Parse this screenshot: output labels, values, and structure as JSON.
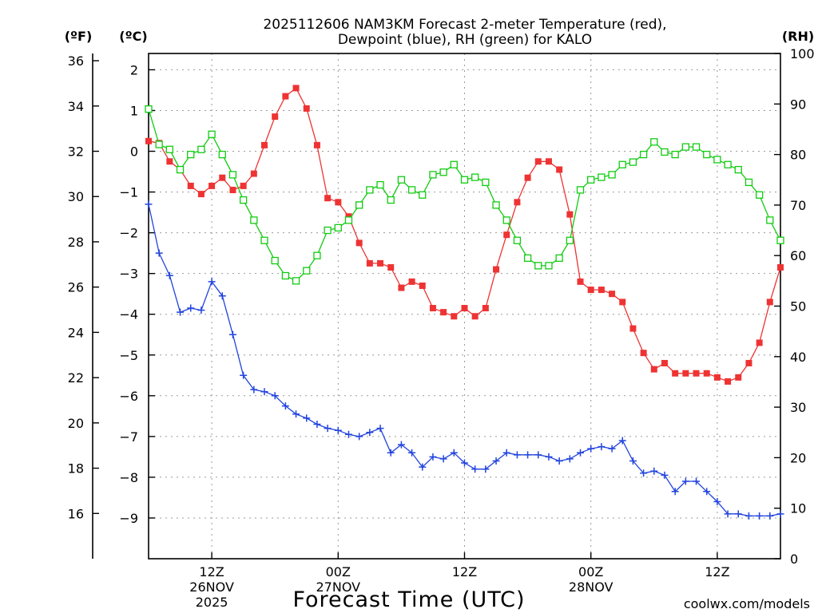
{
  "chart_data": {
    "type": "line",
    "title": [
      "2025112606 NAM3KM Forecast 2-meter Temperature (red),",
      "Dewpoint (blue), RH (green) for KALO"
    ],
    "xlabel": "Forecast Time (UTC)",
    "credit": "coolwx.com/models",
    "colors": {
      "temperature": "#ee3333",
      "dewpoint": "#2244dd",
      "rh": "#11cc11"
    },
    "x_unit": "forecast hour (0 = 2025-11-26 06Z)",
    "xlim": [
      0,
      60
    ],
    "x_ticks": [
      {
        "value": 6,
        "label": [
          "12Z",
          "26NOV",
          "2025"
        ]
      },
      {
        "value": 18,
        "label": [
          "00Z",
          "27NOV"
        ]
      },
      {
        "value": 30,
        "label": [
          "12Z"
        ]
      },
      {
        "value": 42,
        "label": [
          "00Z",
          "28NOV"
        ]
      },
      {
        "value": 54,
        "label": [
          "12Z"
        ]
      }
    ],
    "y_left_f": {
      "label": "(ºF)",
      "ticks": [
        "16",
        "18",
        "20",
        "22",
        "24",
        "26",
        "28",
        "30",
        "32",
        "34",
        "36"
      ]
    },
    "y_left_c": {
      "label": "(ºC)",
      "ylim": [
        -10,
        2.4
      ],
      "ticks": [
        "-9",
        "-8",
        "-7",
        "-6",
        "-5",
        "-4",
        "-3",
        "-2",
        "-1",
        "0",
        "1",
        "2"
      ]
    },
    "y_right": {
      "label": "(RH)",
      "ylim": [
        0,
        100
      ],
      "ticks": [
        "0",
        "10",
        "20",
        "30",
        "40",
        "50",
        "60",
        "70",
        "80",
        "90",
        "100"
      ]
    },
    "series": [
      {
        "name": "Temperature",
        "axis": "c",
        "marker": "filled-square",
        "x": [
          0,
          1,
          2,
          3,
          4,
          5,
          6,
          7,
          8,
          9,
          10,
          11,
          12,
          13,
          14,
          15,
          16,
          17,
          18,
          19,
          20,
          21,
          22,
          23,
          24,
          25,
          26,
          27,
          28,
          29,
          30,
          31,
          32,
          33,
          34,
          35,
          36,
          37,
          38,
          39,
          40,
          41,
          42,
          43,
          44,
          45,
          46,
          47,
          48,
          49,
          50,
          51,
          52,
          53,
          54,
          55,
          56,
          57,
          58,
          59,
          60
        ],
        "values": [
          0.25,
          0.2,
          -0.25,
          -0.45,
          -0.85,
          -1.05,
          -0.85,
          -0.65,
          -0.95,
          -0.85,
          -0.55,
          0.15,
          0.85,
          1.35,
          1.55,
          1.05,
          0.15,
          -1.15,
          -1.25,
          -1.6,
          -2.25,
          -2.75,
          -2.75,
          -2.85,
          -3.35,
          -3.2,
          -3.3,
          -3.85,
          -3.95,
          -4.05,
          -3.85,
          -4.05,
          -3.85,
          -2.9,
          -2.05,
          -1.25,
          -0.65,
          -0.25,
          -0.25,
          -0.45,
          -1.55,
          -3.2,
          -3.4,
          -3.4,
          -3.5,
          -3.7,
          -4.35,
          -4.95,
          -5.35,
          -5.2,
          -5.45,
          -5.45,
          -5.45,
          -5.45,
          -5.55,
          -5.65,
          -5.55,
          -5.2,
          -4.7,
          -3.7,
          -2.85
        ]
      },
      {
        "name": "Dewpoint",
        "axis": "c",
        "marker": "plus",
        "x": [
          0,
          1,
          2,
          3,
          4,
          5,
          6,
          7,
          8,
          9,
          10,
          11,
          12,
          13,
          14,
          15,
          16,
          17,
          18,
          19,
          20,
          21,
          22,
          23,
          24,
          25,
          26,
          27,
          28,
          29,
          30,
          31,
          32,
          33,
          34,
          35,
          36,
          37,
          38,
          39,
          40,
          41,
          42,
          43,
          44,
          45,
          46,
          47,
          48,
          49,
          50,
          51,
          52,
          53,
          54,
          55,
          56,
          57,
          58,
          59,
          60
        ],
        "values": [
          -1.3,
          -2.5,
          -3.05,
          -3.95,
          -3.85,
          -3.9,
          -3.2,
          -3.55,
          -4.5,
          -5.5,
          -5.85,
          -5.9,
          -6.0,
          -6.25,
          -6.45,
          -6.55,
          -6.7,
          -6.8,
          -6.85,
          -6.95,
          -7.0,
          -6.9,
          -6.8,
          -7.4,
          -7.2,
          -7.4,
          -7.75,
          -7.5,
          -7.55,
          -7.4,
          -7.65,
          -7.8,
          -7.8,
          -7.6,
          -7.4,
          -7.45,
          -7.45,
          -7.45,
          -7.5,
          -7.6,
          -7.55,
          -7.4,
          -7.3,
          -7.25,
          -7.3,
          -7.1,
          -7.6,
          -7.9,
          -7.85,
          -7.95,
          -8.35,
          -8.1,
          -8.1,
          -8.35,
          -8.6,
          -8.9,
          -8.9,
          -8.95,
          -8.95,
          -8.95,
          -8.9
        ]
      },
      {
        "name": "RH",
        "axis": "rh",
        "marker": "open-square",
        "x": [
          0,
          1,
          2,
          3,
          4,
          5,
          6,
          7,
          8,
          9,
          10,
          11,
          12,
          13,
          14,
          15,
          16,
          17,
          18,
          19,
          20,
          21,
          22,
          23,
          24,
          25,
          26,
          27,
          28,
          29,
          30,
          31,
          32,
          33,
          34,
          35,
          36,
          37,
          38,
          39,
          40,
          41,
          42,
          43,
          44,
          45,
          46,
          47,
          48,
          49,
          50,
          51,
          52,
          53,
          54,
          55,
          56,
          57,
          58,
          59,
          60
        ],
        "values": [
          89,
          82,
          81,
          77,
          80,
          81,
          84,
          80,
          76,
          71,
          67,
          63,
          59,
          56,
          55,
          57,
          60,
          65,
          65.5,
          67,
          70,
          73,
          74,
          71,
          75,
          73,
          72,
          76,
          76.5,
          78,
          75,
          75.5,
          74.5,
          70,
          67,
          63,
          59.5,
          58,
          58,
          59.5,
          63,
          73,
          75,
          75.5,
          76,
          78,
          78.5,
          80,
          82.5,
          80.5,
          80,
          81.5,
          81.5,
          80,
          79,
          78,
          77,
          74.5,
          72,
          67,
          63
        ]
      }
    ]
  }
}
